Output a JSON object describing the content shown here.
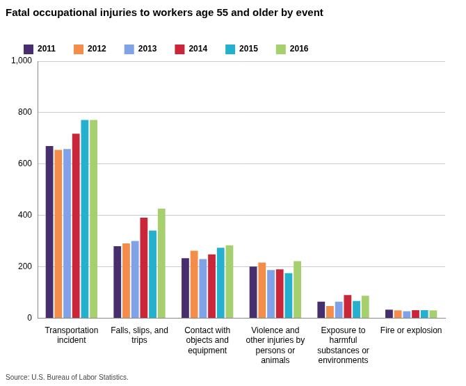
{
  "chart_data": {
    "type": "bar",
    "title": "Fatal occupational injuries to workers age 55 and older by event",
    "source": "Source: U.S. Bureau of Labor Statistics.",
    "categories": [
      "Transportation incident",
      "Falls, slips, and trips",
      "Contact with objects and equipment",
      "Violence and other injuries by persons or animals",
      "Exposure to harmful substances or environments",
      "Fire or explosion"
    ],
    "series": [
      {
        "name": "2011",
        "color": "#472f6e",
        "values": [
          670,
          280,
          233,
          201,
          64,
          33
        ]
      },
      {
        "name": "2012",
        "color": "#f58d4a",
        "values": [
          655,
          291,
          262,
          216,
          47,
          30
        ]
      },
      {
        "name": "2013",
        "color": "#7fa3e6",
        "values": [
          658,
          300,
          230,
          187,
          64,
          27
        ]
      },
      {
        "name": "2014",
        "color": "#c9263a",
        "values": [
          718,
          391,
          248,
          190,
          90,
          31
        ]
      },
      {
        "name": "2015",
        "color": "#25b0ce",
        "values": [
          771,
          341,
          274,
          175,
          67,
          31
        ]
      },
      {
        "name": "2016",
        "color": "#a6cf6d",
        "values": [
          771,
          426,
          283,
          222,
          87,
          30
        ]
      }
    ],
    "ylim": [
      0,
      1000
    ],
    "yticks": [
      0,
      200,
      400,
      600,
      800,
      {
        "value": 1000,
        "label": "1,000"
      }
    ],
    "grid": true,
    "legend": "top"
  }
}
